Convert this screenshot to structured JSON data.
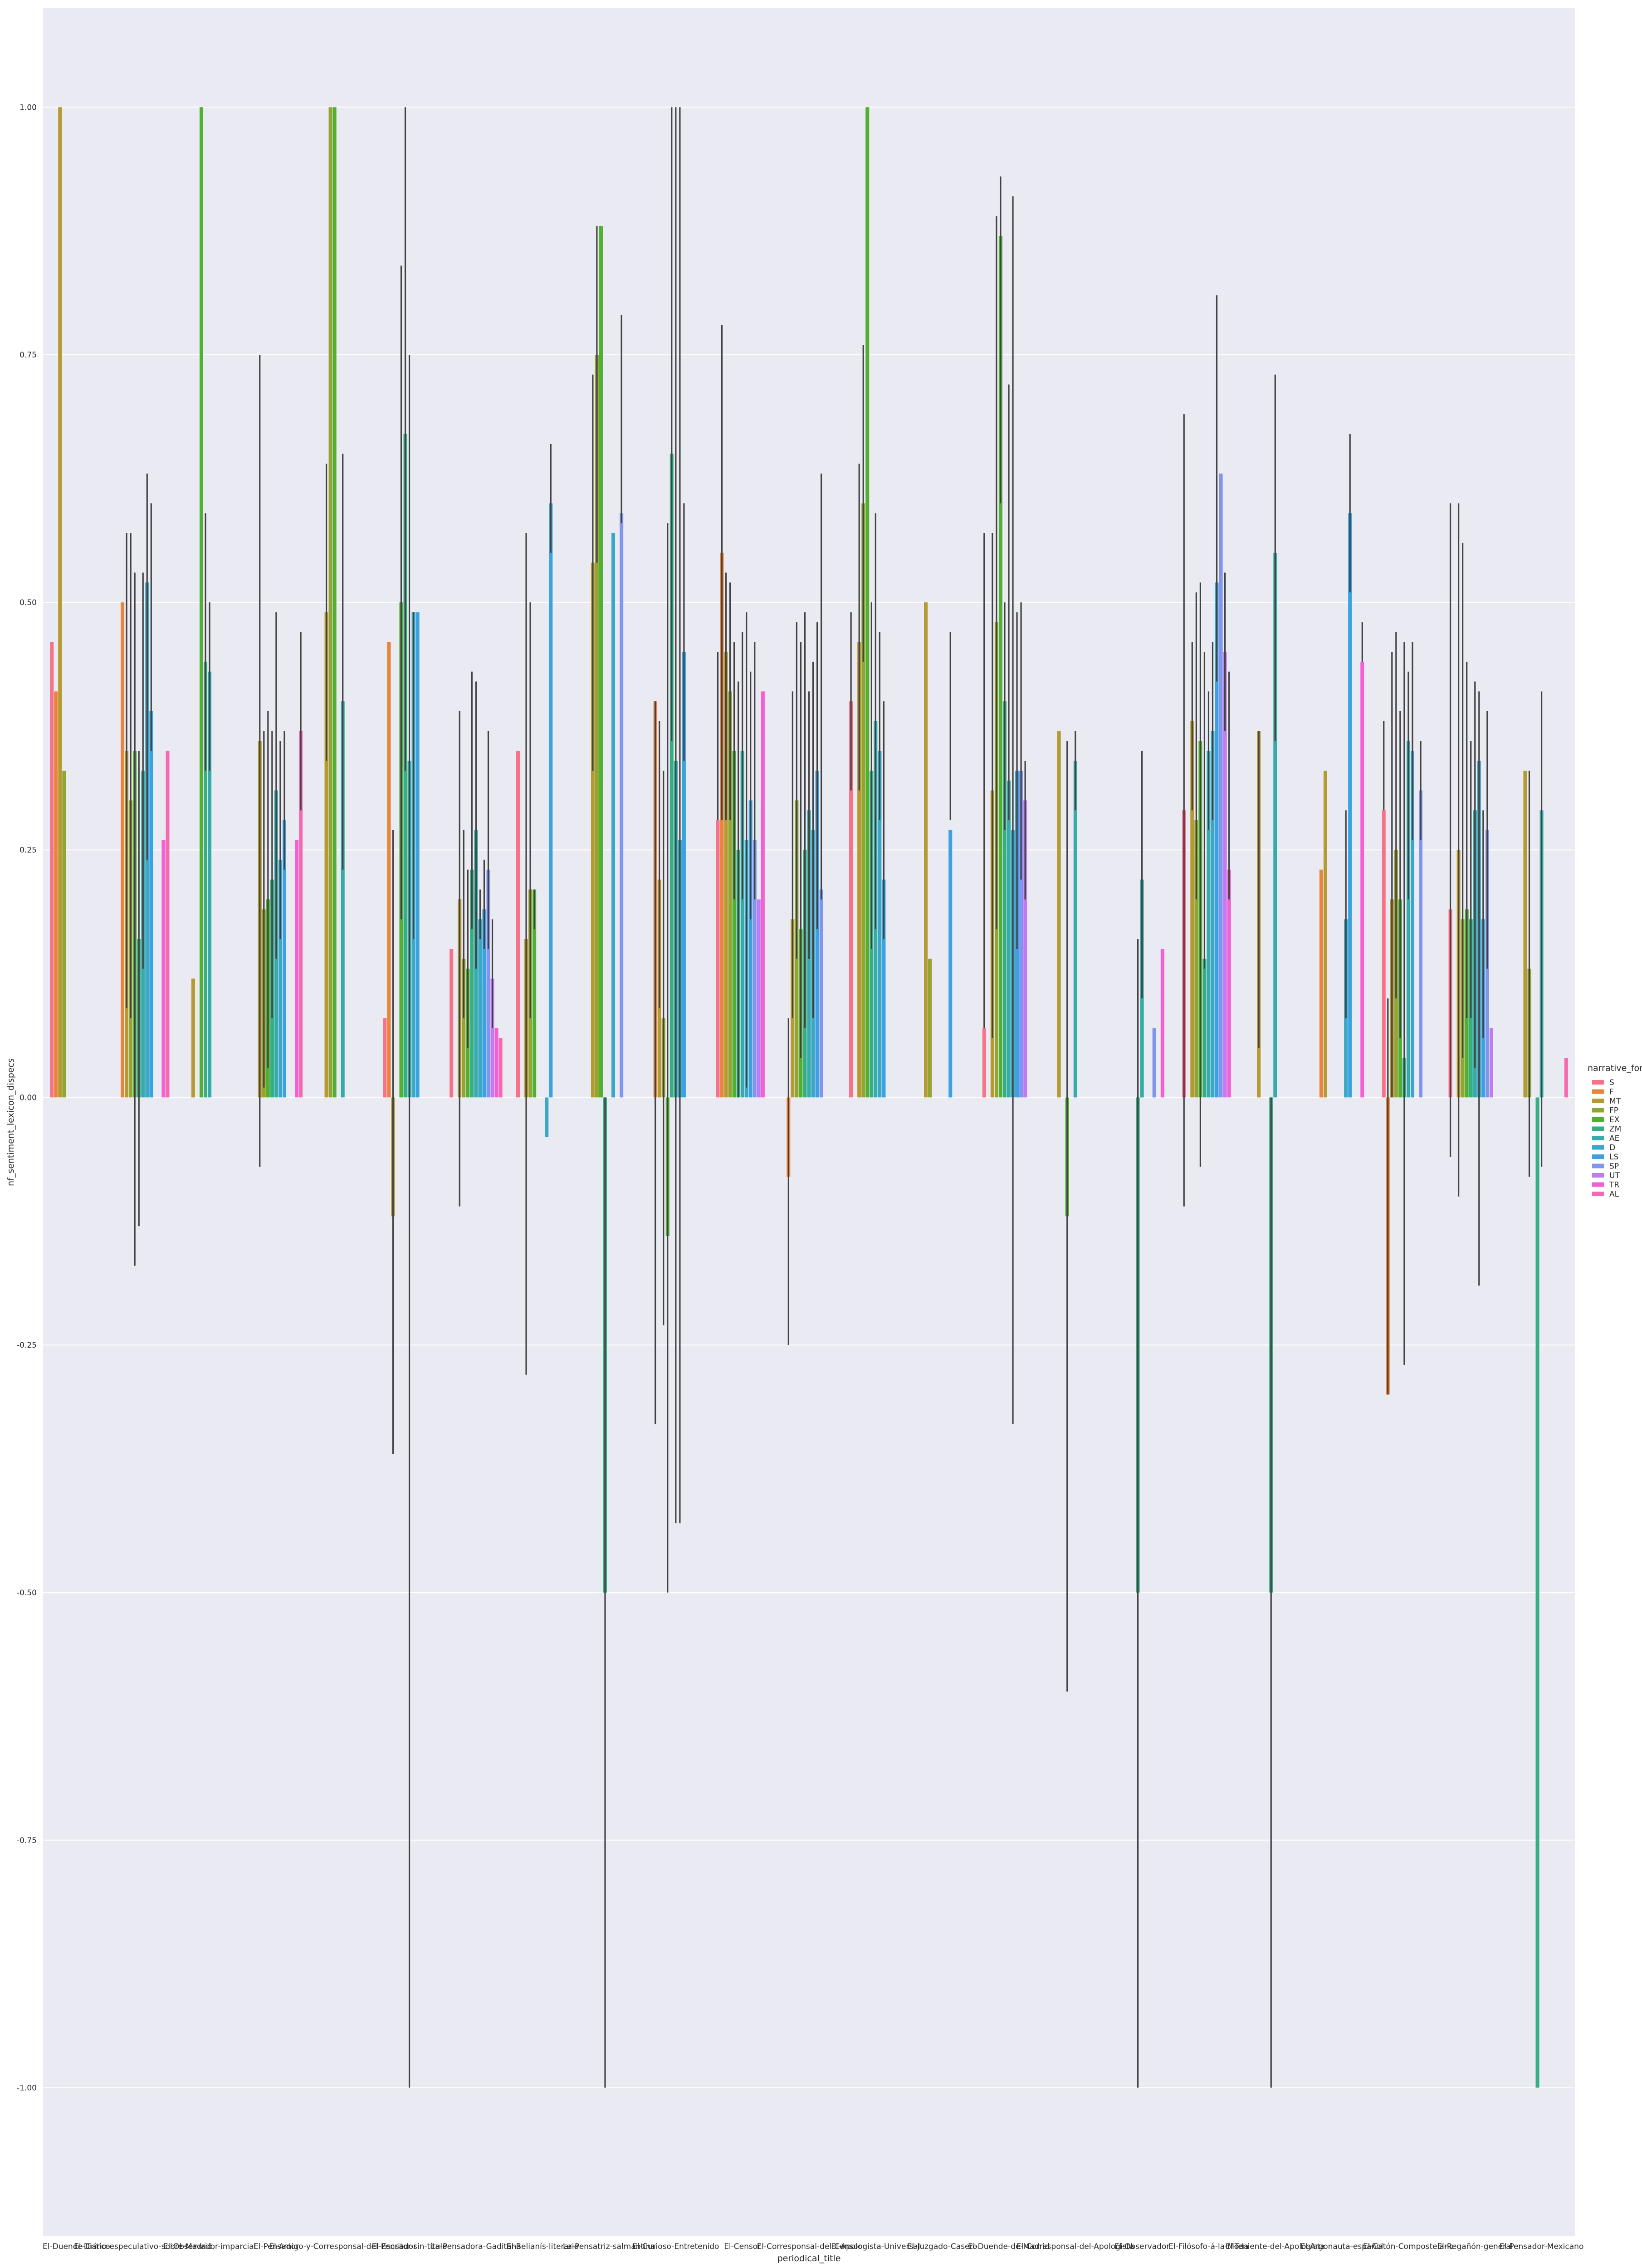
{
  "chart_data": {
    "type": "bar",
    "xlabel": "periodical_title",
    "ylabel": "nf_sentiment_lexicon_dispecs",
    "ylim": [
      -1.15,
      1.1
    ],
    "yticks": [
      -1.0,
      -0.75,
      -0.5,
      -0.25,
      0.0,
      0.25,
      0.5,
      0.75,
      1.0
    ],
    "ytick_labels": [
      "-1.00",
      "-0.75",
      "-0.50",
      "-0.25",
      "0.00",
      "0.25",
      "0.50",
      "0.75",
      "1.00"
    ],
    "grid": true,
    "legend_title": "narrative_form",
    "legend_position": "right",
    "hue_order": [
      "S",
      "F",
      "MT",
      "FP",
      "EX",
      "ZM",
      "AE",
      "D",
      "LS",
      "SP",
      "UT",
      "TR",
      "AL"
    ],
    "colors": [
      "#f77189",
      "#e8853a",
      "#b59a32",
      "#93a431",
      "#4fb031",
      "#34af84",
      "#37abaa",
      "#39a7c5",
      "#3ba2e1",
      "#8195ee",
      "#c07bf0",
      "#f45fd4",
      "#f569b3"
    ],
    "categories": [
      "El-Duende-Crítico",
      "El-Diario-especulativo-sobre-Madrid",
      "El-Observador-imparcial",
      "El-Pensador",
      "El-Amigo-y-Corresponsal-del-Pensador",
      "El-Escritor-sin-título",
      "La-Pensadora-Gaditana",
      "El-Belianís-literario",
      "La-Pensatriz-salmantina",
      "El-Curioso-Entretenido",
      "El-Censor",
      "El-Corresponsal-del-Censor",
      "El-Apologista-Universal",
      "El-Juzgado-Casero",
      "El-Duende-de-Madrid",
      "El-Corresponsal-del-Apologista",
      "El-Observador",
      "El-Filósofo-á-la-Moda",
      "El-Teniente-del-Apologista",
      "El-Argonauta-español",
      "El-Catón-Compostelano",
      "El-Regañón-general",
      "El-Pensador-Mexicano"
    ],
    "series": [
      {
        "name": "S",
        "values": [
          0.46,
          0.0,
          0.0,
          0.0,
          0.0,
          0.08,
          0.15,
          0.35,
          0.0,
          0.0,
          0.28,
          0.0,
          0.4,
          0.0,
          0.07,
          0.0,
          0.0,
          0.29,
          0.0,
          0.0,
          0.29,
          0.19,
          0.0
        ],
        "err": [
          [
            0.46,
            0.46
          ],
          null,
          null,
          null,
          null,
          [
            0.08,
            0.08
          ],
          [
            0.15,
            0.15
          ],
          [
            0.35,
            0.35
          ],
          null,
          null,
          [
            0.28,
            0.45
          ],
          null,
          [
            0.31,
            0.49
          ],
          null,
          [
            0.07,
            0.57
          ],
          null,
          null,
          [
            -0.11,
            0.69
          ],
          null,
          null,
          [
            0.29,
            0.38
          ],
          [
            -0.06,
            0.6
          ],
          null
        ]
      },
      {
        "name": "F",
        "values": [
          0.41,
          0.5,
          0.0,
          0.0,
          0.0,
          0.46,
          0.0,
          0.0,
          0.0,
          0.4,
          0.55,
          -0.08,
          0.0,
          0.0,
          0.0,
          0.0,
          0.0,
          0.0,
          0.0,
          0.23,
          -0.3,
          0.0,
          0.0
        ],
        "err": [
          [
            0.41,
            0.41
          ],
          [
            0.5,
            0.5
          ],
          null,
          null,
          null,
          [
            0.46,
            0.46
          ],
          null,
          null,
          null,
          [
            -0.33,
            0.4
          ],
          [
            0.28,
            0.78
          ],
          [
            -0.25,
            0.08
          ],
          null,
          null,
          null,
          null,
          null,
          null,
          null,
          [
            0.23,
            0.23
          ],
          [
            -0.3,
            0.1
          ],
          null,
          null
        ]
      },
      {
        "name": "MT",
        "values": [
          1.0,
          0.35,
          0.12,
          0.36,
          0.49,
          -0.12,
          0.2,
          0.16,
          0.54,
          0.22,
          0.45,
          0.18,
          0.46,
          0.5,
          0.31,
          0.37,
          0.0,
          0.38,
          0.37,
          0.33,
          0.2,
          0.25,
          0.33
        ],
        "err": [
          [
            1.0,
            1.0
          ],
          [
            0.09,
            0.57
          ],
          [
            0.12,
            0.12
          ],
          [
            -0.07,
            0.75
          ],
          [
            0.34,
            0.64
          ],
          [
            -0.36,
            0.27
          ],
          [
            -0.11,
            0.39
          ],
          [
            -0.28,
            0.57
          ],
          [
            0.33,
            0.73
          ],
          [
            0.09,
            0.38
          ],
          [
            0.28,
            0.53
          ],
          [
            0.08,
            0.41
          ],
          [
            0.31,
            0.64
          ],
          [
            0.5,
            0.5
          ],
          [
            0.06,
            0.57
          ],
          [
            0.37,
            0.37
          ],
          null,
          [
            0.29,
            0.46
          ],
          [
            0.05,
            0.37
          ],
          [
            0.33,
            0.33
          ],
          [
            0.0,
            0.45
          ],
          [
            -0.1,
            0.6
          ],
          [
            0.33,
            0.33
          ]
        ]
      },
      {
        "name": "FP",
        "values": [
          0.33,
          0.3,
          0.0,
          0.19,
          1.0,
          0.0,
          0.14,
          0.21,
          0.75,
          0.08,
          0.41,
          0.3,
          0.6,
          0.14,
          0.48,
          0.0,
          0.0,
          0.28,
          0.0,
          0.0,
          0.25,
          0.18,
          0.13
        ],
        "err": [
          [
            0.33,
            0.33
          ],
          [
            0.08,
            0.57
          ],
          null,
          [
            0.01,
            0.37
          ],
          [
            1.0,
            1.0
          ],
          null,
          [
            0.08,
            0.27
          ],
          [
            0.08,
            0.5
          ],
          [
            0.54,
            0.88
          ],
          [
            -0.23,
            0.33
          ],
          [
            0.28,
            0.52
          ],
          [
            0.14,
            0.48
          ],
          [
            0.44,
            0.76
          ],
          [
            0.14,
            0.14
          ],
          [
            0.17,
            0.89
          ],
          null,
          null,
          [
            0.2,
            0.51
          ],
          null,
          null,
          [
            0.1,
            0.47
          ],
          [
            0.04,
            0.56
          ],
          [
            -0.08,
            0.33
          ]
        ]
      },
      {
        "name": "EX",
        "values": [
          0.0,
          0.35,
          1.0,
          0.2,
          1.0,
          0.5,
          0.13,
          0.21,
          0.88,
          -0.14,
          0.35,
          0.17,
          1.0,
          0.0,
          0.87,
          -0.12,
          0.0,
          0.36,
          0.0,
          0.0,
          0.2,
          0.19,
          0.0
        ],
        "err": [
          null,
          [
            -0.17,
            0.53
          ],
          [
            1.0,
            1.0
          ],
          [
            0.03,
            0.39
          ],
          [
            1.0,
            1.0
          ],
          [
            0.18,
            0.84
          ],
          [
            0.05,
            0.23
          ],
          [
            0.17,
            0.21
          ],
          [
            0.88,
            0.88
          ],
          [
            -0.5,
            0.58
          ],
          [
            0.2,
            0.46
          ],
          [
            0.04,
            0.46
          ],
          [
            1.0,
            1.0
          ],
          null,
          [
            0.6,
            0.93
          ],
          [
            -0.6,
            0.36
          ],
          null,
          [
            -0.07,
            0.52
          ],
          null,
          null,
          [
            0.06,
            0.39
          ],
          [
            0.08,
            0.44
          ],
          null
        ]
      },
      {
        "name": "ZM",
        "values": [
          0.0,
          0.16,
          0.44,
          0.22,
          0.0,
          0.67,
          0.23,
          0.0,
          -0.5,
          0.65,
          0.25,
          0.25,
          0.33,
          0.0,
          0.4,
          0.0,
          -0.5,
          0.14,
          -0.5,
          0.0,
          0.04,
          0.18,
          -1.0
        ],
        "err": [
          null,
          [
            -0.13,
            0.35
          ],
          [
            0.33,
            0.59
          ],
          [
            0.08,
            0.37
          ],
          null,
          [
            0.33,
            1.0
          ],
          [
            0.17,
            0.43
          ],
          null,
          [
            -1.0,
            0.0
          ],
          [
            0.36,
            1.0
          ],
          [
            0.0,
            0.42
          ],
          [
            0.07,
            0.49
          ],
          [
            0.15,
            0.5
          ],
          null,
          [
            0.27,
            0.5
          ],
          null,
          [
            -1.0,
            0.16
          ],
          [
            0.13,
            0.45
          ],
          [
            -1.0,
            0.0
          ],
          null,
          [
            -0.27,
            0.46
          ],
          [
            0.08,
            0.36
          ],
          null
        ]
      },
      {
        "name": "AE",
        "values": [
          0.0,
          0.33,
          0.43,
          0.31,
          0.4,
          0.34,
          0.27,
          0.0,
          0.0,
          0.34,
          0.35,
          0.29,
          0.38,
          0.0,
          0.32,
          0.34,
          0.22,
          0.35,
          0.55,
          0.0,
          0.36,
          0.29,
          0.29
        ],
        "err": [
          null,
          [
            0.13,
            0.53
          ],
          [
            0.33,
            0.5
          ],
          [
            0.14,
            0.49
          ],
          [
            0.23,
            0.65
          ],
          [
            -1.0,
            0.75
          ],
          [
            0.13,
            0.42
          ],
          null,
          null,
          [
            -0.43,
            1.0
          ],
          [
            0.2,
            0.47
          ],
          [
            0.14,
            0.41
          ],
          [
            0.17,
            0.59
          ],
          null,
          [
            0.28,
            0.72
          ],
          [
            0.29,
            0.37
          ],
          [
            0.1,
            0.35
          ],
          [
            0.27,
            0.41
          ],
          [
            0.36,
            0.73
          ],
          null,
          [
            0.2,
            0.43
          ],
          [
            0.03,
            0.42
          ],
          [
            -0.07,
            0.41
          ]
        ]
      },
      {
        "name": "D",
        "values": [
          0.0,
          0.52,
          0.0,
          0.24,
          0.0,
          0.49,
          0.18,
          -0.04,
          0.57,
          0.26,
          0.26,
          0.27,
          0.35,
          0.0,
          0.27,
          0.0,
          0.0,
          0.37,
          0.0,
          0.18,
          0.35,
          0.34,
          0.0
        ],
        "err": [
          null,
          [
            0.24,
            0.63
          ],
          null,
          [
            0.16,
            0.36
          ],
          null,
          [
            0.16,
            0.49
          ],
          [
            0.16,
            0.21
          ],
          [
            -0.04,
            -0.04
          ],
          [
            0.57,
            0.57
          ],
          [
            -0.43,
            1.0
          ],
          [
            0.01,
            0.49
          ],
          [
            0.08,
            0.44
          ],
          [
            0.28,
            0.47
          ],
          null,
          [
            -0.33,
            0.91
          ],
          null,
          null,
          [
            0.28,
            0.46
          ],
          null,
          [
            0.08,
            0.29
          ],
          [
            0.26,
            0.46
          ],
          [
            -0.19,
            0.41
          ],
          null
        ]
      },
      {
        "name": "LS",
        "values": [
          0.0,
          0.39,
          0.0,
          0.28,
          0.0,
          0.49,
          0.19,
          0.6,
          0.0,
          0.45,
          0.3,
          0.33,
          0.22,
          0.27,
          0.33,
          0.0,
          0.0,
          0.52,
          0.0,
          0.59,
          0.0,
          0.18,
          0.0
        ],
        "err": [
          null,
          [
            0.35,
            0.6
          ],
          null,
          [
            0.23,
            0.37
          ],
          null,
          [
            0.49,
            0.49
          ],
          [
            0.15,
            0.24
          ],
          [
            0.55,
            0.66
          ],
          null,
          [
            0.34,
            0.6
          ],
          [
            0.18,
            0.43
          ],
          [
            0.17,
            0.48
          ],
          [
            0.16,
            0.4
          ],
          [
            0.28,
            0.47
          ],
          [
            0.15,
            0.49
          ],
          null,
          null,
          [
            0.42,
            0.81
          ],
          null,
          [
            0.51,
            0.67
          ],
          null,
          [
            0.06,
            0.29
          ],
          null
        ]
      },
      {
        "name": "SP",
        "values": [
          0.0,
          0.0,
          0.0,
          0.0,
          0.0,
          0.0,
          0.23,
          0.0,
          0.59,
          0.0,
          0.26,
          0.21,
          0.0,
          0.0,
          0.33,
          0.0,
          0.07,
          0.63,
          0.0,
          0.0,
          0.31,
          0.27,
          0.0
        ],
        "err": [
          null,
          null,
          null,
          null,
          null,
          null,
          [
            0.15,
            0.37
          ],
          null,
          [
            0.58,
            0.79
          ],
          null,
          [
            0.2,
            0.46
          ],
          [
            0.2,
            0.63
          ],
          null,
          null,
          [
            0.22,
            0.5
          ],
          null,
          null,
          [
            0.63,
            0.63
          ],
          null,
          null,
          [
            0.26,
            0.36
          ],
          [
            0.13,
            0.39
          ],
          null
        ]
      },
      {
        "name": "UT",
        "values": [
          0.0,
          0.0,
          0.0,
          0.0,
          0.0,
          0.0,
          0.12,
          0.0,
          0.0,
          0.0,
          0.2,
          0.0,
          0.0,
          0.0,
          0.3,
          0.0,
          0.0,
          0.45,
          0.0,
          0.0,
          0.0,
          0.07,
          0.0
        ],
        "err": [
          null,
          null,
          null,
          null,
          null,
          null,
          [
            0.07,
            0.18
          ],
          null,
          null,
          null,
          [
            0.2,
            0.2
          ],
          null,
          null,
          null,
          [
            0.2,
            0.34
          ],
          null,
          null,
          [
            0.37,
            0.53
          ],
          null,
          null,
          null,
          [
            0.07,
            0.07
          ],
          null
        ]
      },
      {
        "name": "TR",
        "values": [
          0.0,
          0.26,
          0.0,
          0.26,
          0.0,
          0.0,
          0.07,
          0.0,
          0.0,
          0.0,
          0.41,
          0.0,
          0.0,
          0.0,
          0.0,
          0.0,
          0.15,
          0.23,
          0.0,
          0.44,
          0.0,
          0.0,
          0.0
        ],
        "err": [
          null,
          [
            0.26,
            0.26
          ],
          null,
          [
            0.26,
            0.26
          ],
          null,
          null,
          [
            0.07,
            0.07
          ],
          null,
          null,
          null,
          [
            0.41,
            0.41
          ],
          null,
          null,
          null,
          null,
          null,
          [
            0.15,
            0.15
          ],
          [
            0.2,
            0.43
          ],
          null,
          [
            0.44,
            0.48
          ],
          null,
          null,
          null
        ]
      },
      {
        "name": "AL",
        "values": [
          0.0,
          0.35,
          0.0,
          0.37,
          0.0,
          0.0,
          0.06,
          0.0,
          0.0,
          0.0,
          0.0,
          0.0,
          0.0,
          0.0,
          0.0,
          0.0,
          0.0,
          0.0,
          0.0,
          0.0,
          0.0,
          0.0,
          0.04
        ],
        "err": [
          null,
          [
            0.35,
            0.35
          ],
          null,
          [
            0.29,
            0.47
          ],
          null,
          null,
          [
            0.06,
            0.06
          ],
          null,
          null,
          null,
          null,
          null,
          null,
          null,
          null,
          null,
          null,
          null,
          null,
          null,
          null,
          null,
          [
            0.04,
            0.04
          ]
        ]
      }
    ]
  }
}
